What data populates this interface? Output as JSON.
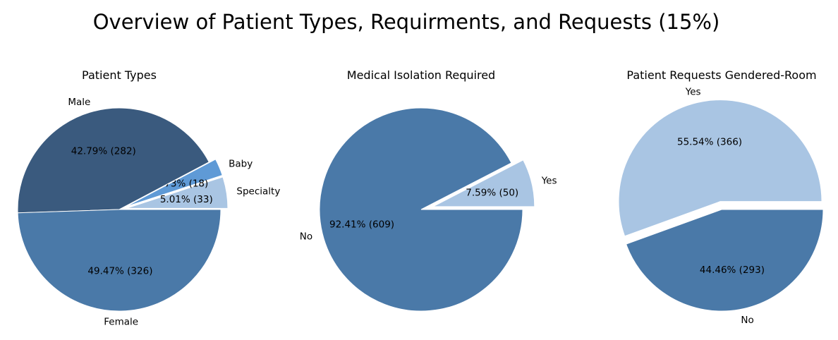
{
  "title": "Overview of Patient Types, Requirments, and Requests (15%)",
  "colors": {
    "dark_blue": "#3a5a7e",
    "steel_blue": "#4a79a8",
    "bright_blue": "#5f9ad6",
    "light_blue": "#a9c5e3"
  },
  "chart_data": [
    {
      "type": "pie",
      "title": "Patient Types",
      "startangle": 0,
      "slices": [
        {
          "label": "Specialty",
          "value": 33,
          "percent_label": "5.01%  (33)",
          "color": "#a9c5e3",
          "exploded": true
        },
        {
          "label": "Baby",
          "value": 18,
          "percent_label": "2.73%  (18)",
          "color": "#5f9ad6",
          "exploded": true
        },
        {
          "label": "Male",
          "value": 282,
          "percent_label": "42.79%  (282)",
          "color": "#3a5a7e",
          "exploded": false
        },
        {
          "label": "Female",
          "value": 326,
          "percent_label": "49.47%  (326)",
          "color": "#4a79a8",
          "exploded": false
        }
      ]
    },
    {
      "type": "pie",
      "title": "Medical Isolation Required",
      "startangle": 0,
      "slices": [
        {
          "label": "Yes",
          "value": 50,
          "percent_label": "7.59%  (50)",
          "color": "#a9c5e3",
          "exploded": true
        },
        {
          "label": "No",
          "value": 609,
          "percent_label": "92.41%  (609)",
          "color": "#4a79a8",
          "exploded": false
        }
      ]
    },
    {
      "type": "pie",
      "title": "Patient Requests Gendered-Room",
      "startangle": 0,
      "slices": [
        {
          "label": "Yes",
          "value": 366,
          "percent_label": "55.54%  (366)",
          "color": "#a9c5e3",
          "exploded": true
        },
        {
          "label": "No",
          "value": 293,
          "percent_label": "44.46%  (293)",
          "color": "#4a79a8",
          "exploded": false
        }
      ]
    }
  ]
}
